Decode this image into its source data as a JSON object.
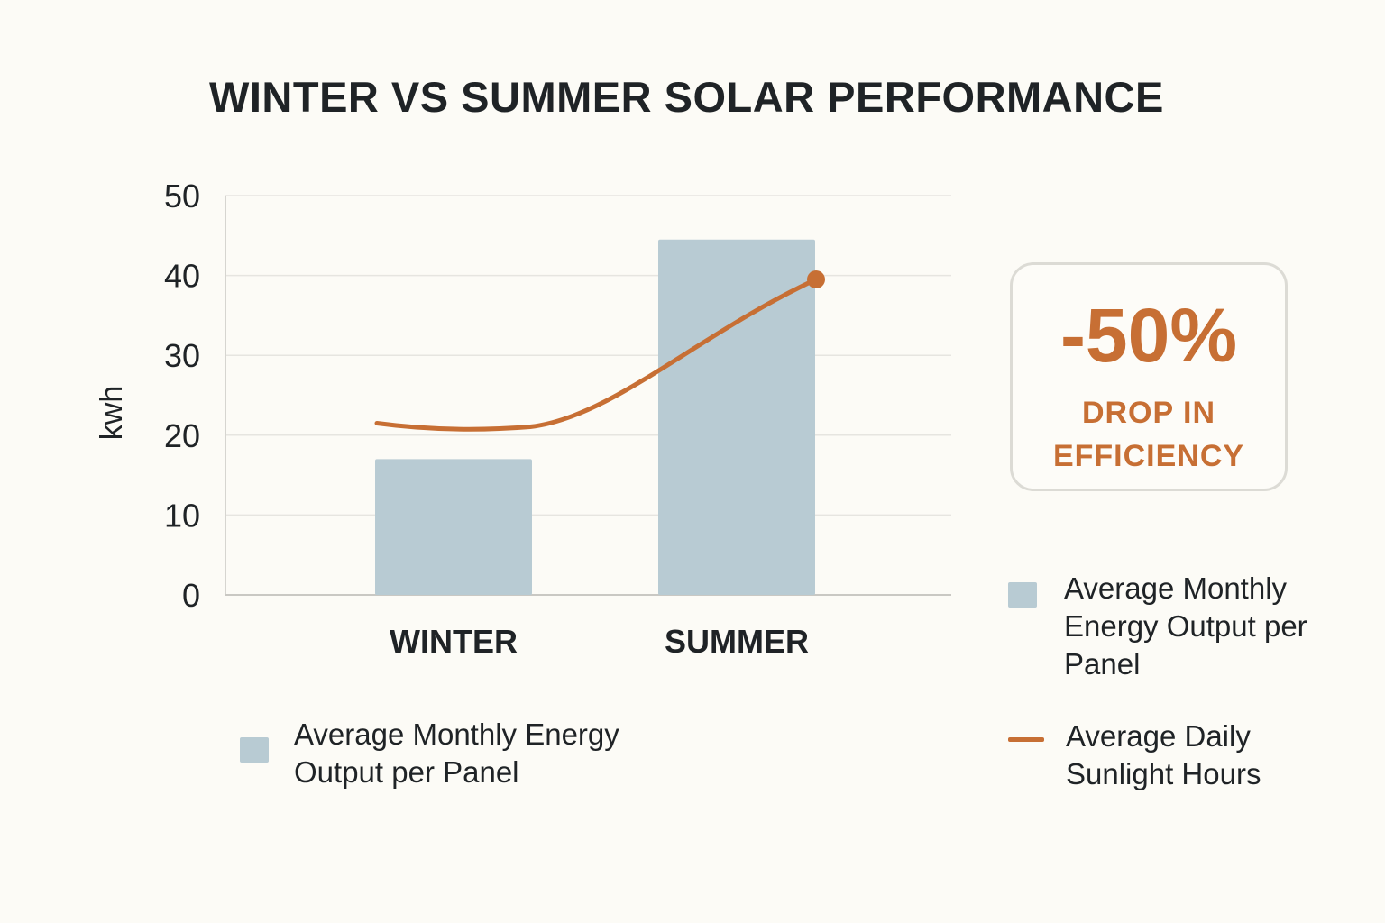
{
  "chart_data": {
    "type": "bar",
    "title": "WINTER VS SUMMER SOLAR PERFORMANCE",
    "xlabel": "",
    "ylabel": "kwh",
    "ylim": [
      0,
      50
    ],
    "yticks": [
      0,
      10,
      20,
      30,
      40,
      50
    ],
    "grid": true,
    "categories": [
      "WINTER",
      "SUMMER"
    ],
    "series": [
      {
        "name": "Average Monthly Energy Output per Panel",
        "type": "bar",
        "color": "#b8cbd3",
        "values": [
          17,
          44.5
        ]
      },
      {
        "name": "Average Daily Sunlight Hours",
        "type": "line",
        "color": "#c76f34",
        "values": [
          21.5,
          39.5
        ]
      }
    ],
    "annotation": {
      "value": "-50%",
      "text": "DROP IN EFFICIENCY"
    }
  },
  "legend_bottom": {
    "label": "Average Monthly Energy Output per Panel"
  },
  "legend_right": [
    {
      "key": "bar",
      "label": "Average Monthly Energy Output per Panel"
    },
    {
      "key": "line",
      "label": "Average Daily Sunlight Hours"
    }
  ]
}
